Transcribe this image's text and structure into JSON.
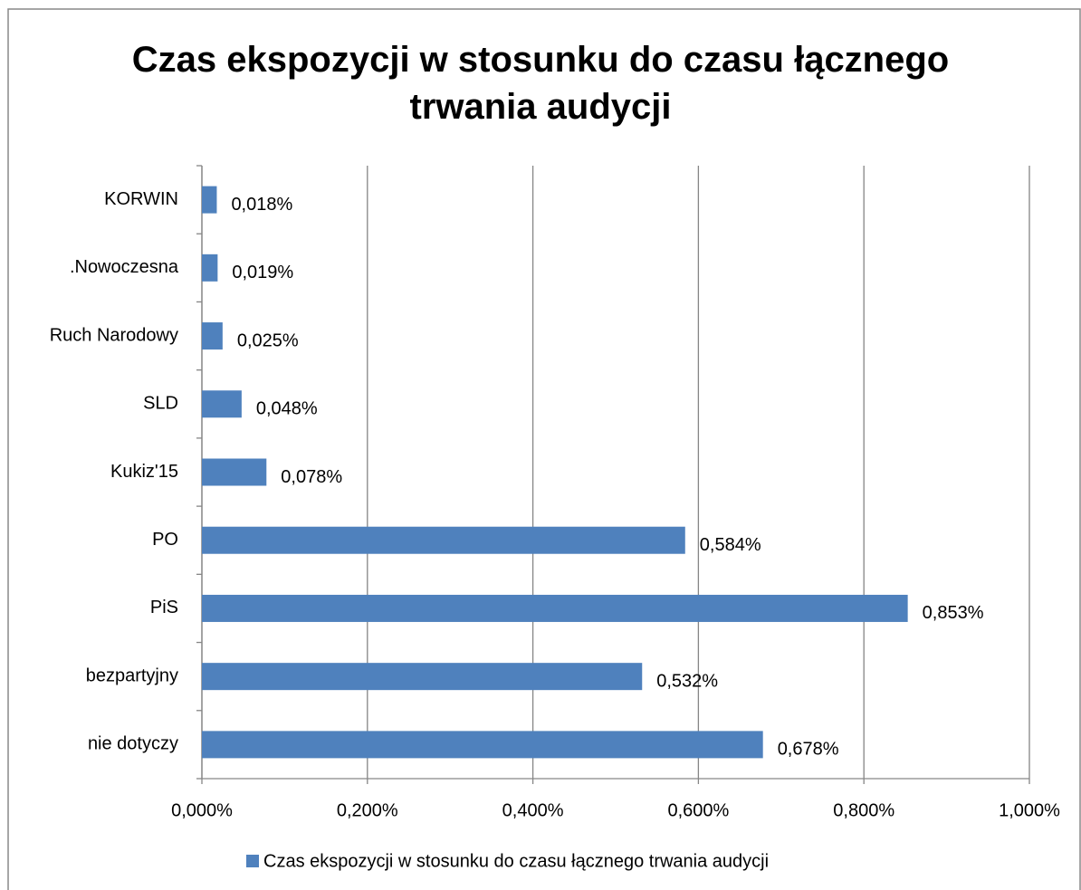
{
  "chart_data": {
    "type": "bar",
    "orientation": "horizontal",
    "title": "Czas ekspozycji w stosunku do czasu łącznego trwania audycji",
    "categories": [
      "KORWIN",
      ".Nowoczesna",
      "Ruch Narodowy",
      "SLD",
      "Kukiz'15",
      "PO",
      "PiS",
      "bezpartyjny",
      "nie dotyczy"
    ],
    "series": [
      {
        "name": "Czas ekspozycji w stosunku do czasu łącznego trwania audycji",
        "color": "#4f81bd",
        "values": [
          0.018,
          0.019,
          0.025,
          0.048,
          0.078,
          0.584,
          0.853,
          0.532,
          0.678
        ],
        "value_labels": [
          "0,018%",
          "0,019%",
          "0,025%",
          "0,048%",
          "0,078%",
          "0,584%",
          "0,853%",
          "0,532%",
          "0,678%"
        ]
      }
    ],
    "xlim": [
      0,
      1
    ],
    "xticks": [
      {
        "value": 0,
        "label": "0,000%"
      },
      {
        "value": 0.2,
        "label": "0,200%"
      },
      {
        "value": 0.4,
        "label": "0,400%"
      },
      {
        "value": 0.6,
        "label": "0,600%"
      },
      {
        "value": 0.8,
        "label": "0,800%"
      },
      {
        "value": 1,
        "label": "1,000%"
      }
    ],
    "grid": true,
    "legend": "bottom"
  }
}
